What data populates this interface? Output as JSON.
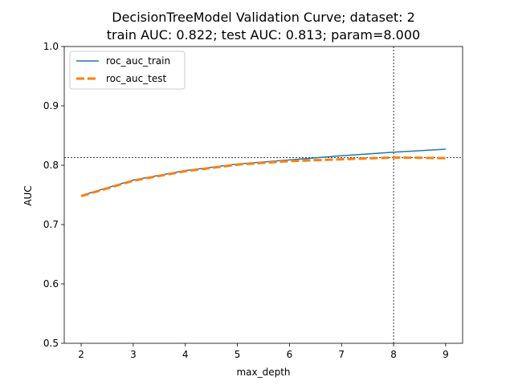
{
  "chart_data": {
    "type": "line",
    "title_line1": "DecisionTreeModel Validation Curve; dataset: 2",
    "title_line2": "train AUC: 0.822; test AUC: 0.813; param=8.000",
    "xlabel": "max_depth",
    "ylabel": "AUC",
    "xlim": [
      1.675,
      9.325
    ],
    "ylim": [
      0.5,
      1.0
    ],
    "xticks": [
      2,
      3,
      4,
      5,
      6,
      7,
      8,
      9
    ],
    "yticks": [
      0.5,
      0.6,
      0.7,
      0.8,
      0.9,
      1.0
    ],
    "ytick_labels": [
      "0.5",
      "0.6",
      "0.7",
      "0.8",
      "0.9",
      "1.0"
    ],
    "x": [
      2,
      3,
      4,
      5,
      6,
      7,
      8,
      9
    ],
    "series": [
      {
        "name": "roc_auc_train",
        "values": [
          0.749,
          0.775,
          0.791,
          0.802,
          0.809,
          0.816,
          0.822,
          0.827
        ],
        "color": "#1f77b4",
        "style": "solid"
      },
      {
        "name": "roc_auc_test",
        "values": [
          0.748,
          0.774,
          0.79,
          0.801,
          0.807,
          0.81,
          0.813,
          0.812
        ],
        "color": "#ff7f0e",
        "style": "dashed"
      }
    ],
    "vline_x": 8,
    "hline_y": 0.813,
    "legend_position": "top-left",
    "grid": false
  }
}
